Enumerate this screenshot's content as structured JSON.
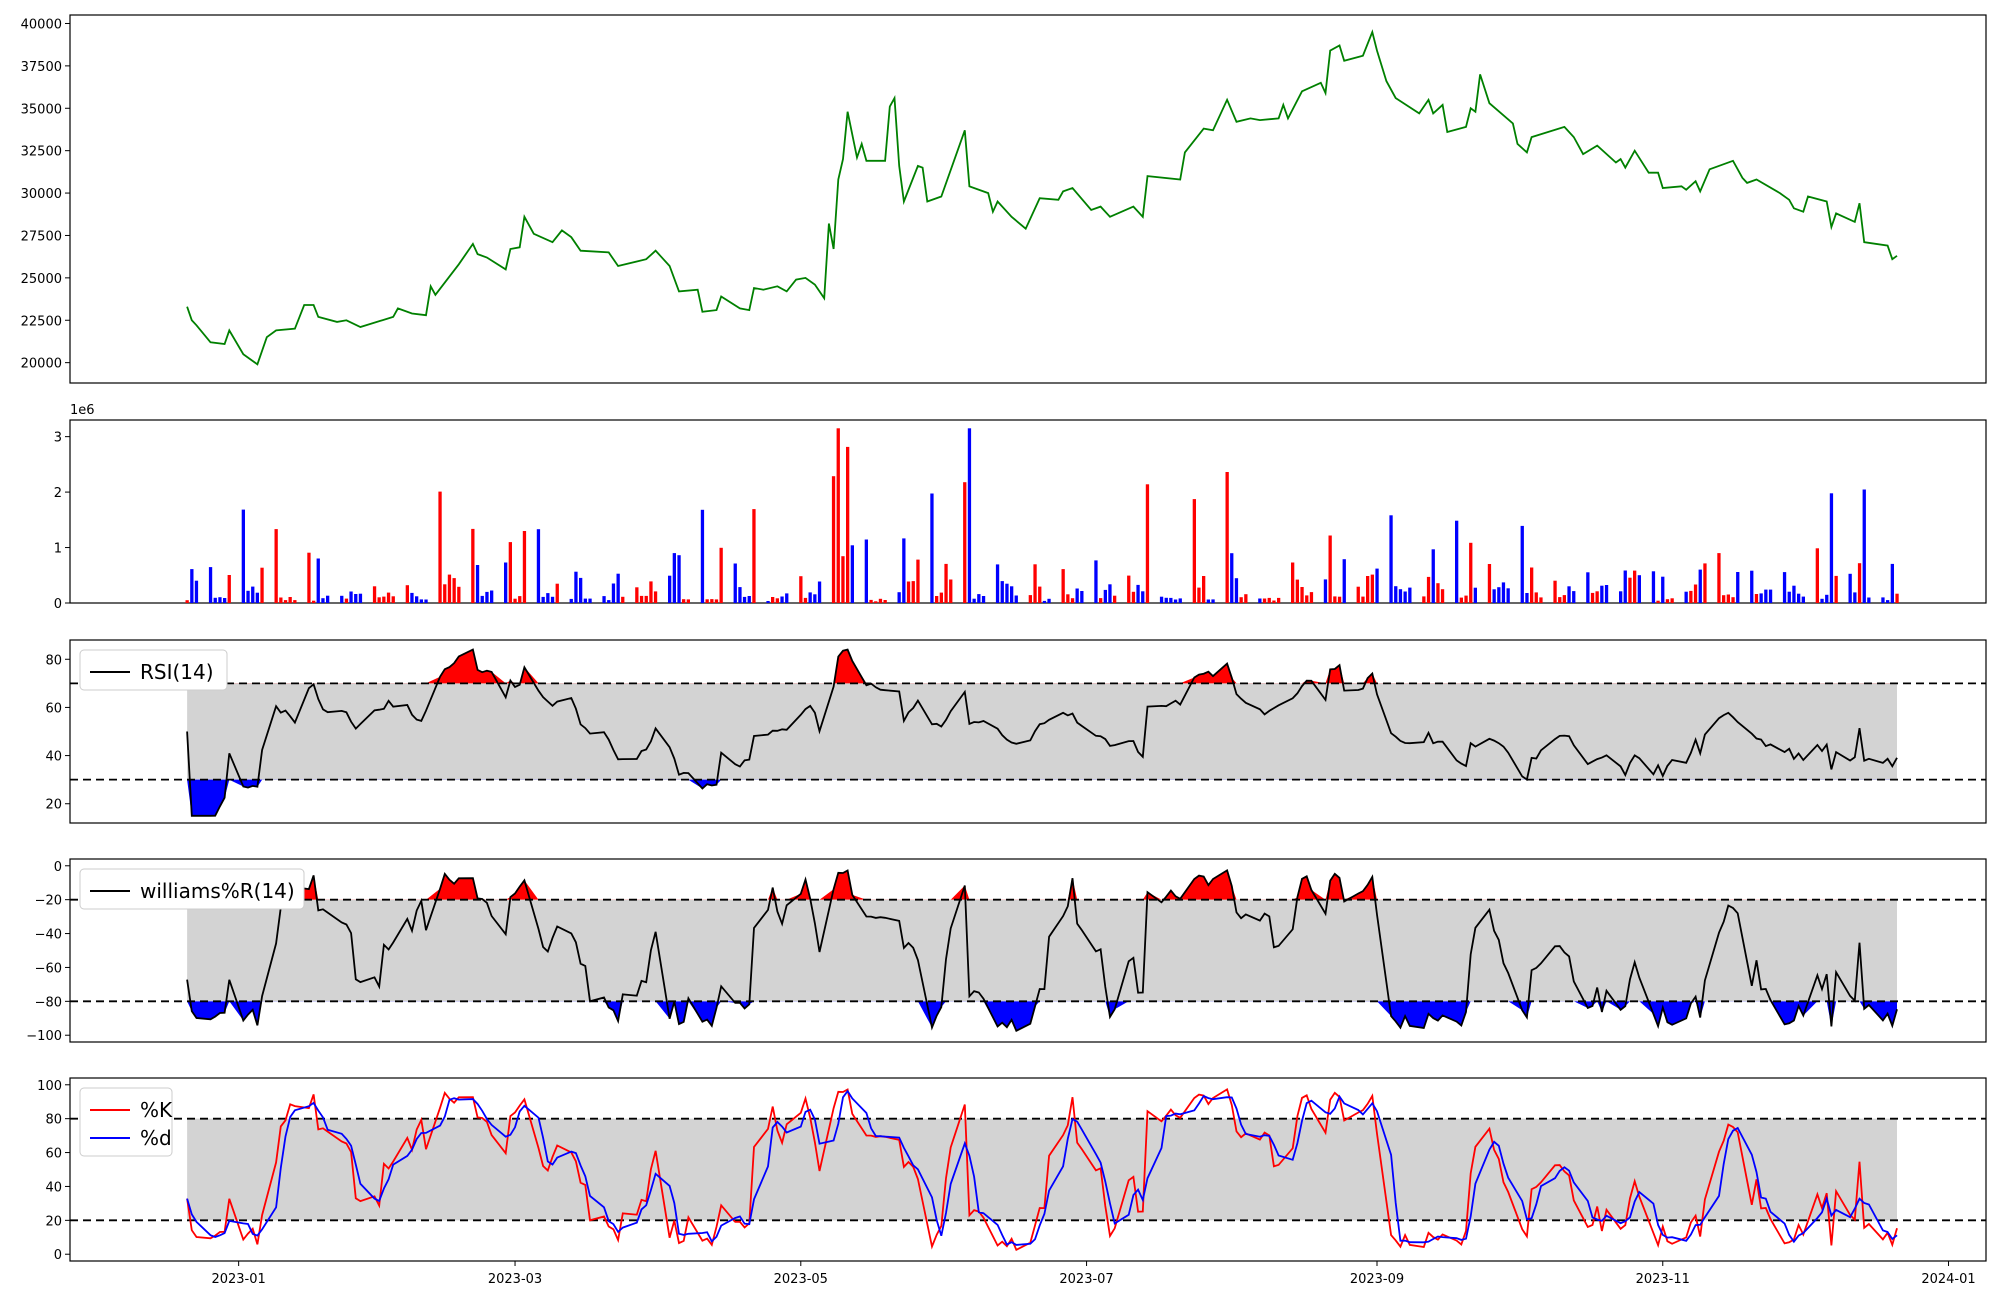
{
  "chart_data": [
    {
      "type": "line",
      "panel": "price",
      "title": "",
      "ylim": [
        18800,
        40500
      ],
      "yticks": [
        20000,
        22500,
        25000,
        27500,
        30000,
        32500,
        35000,
        37500,
        40000
      ],
      "ytick_labels": [
        "20000",
        "22500",
        "25000",
        "27500",
        "30000",
        "32500",
        "35000",
        "37500",
        "40000"
      ],
      "colors": {
        "line": "#008000"
      },
      "series": [
        {
          "points": [
            [
              "2022-12-21",
              23300
            ],
            [
              "2022-12-22",
              22500
            ],
            [
              "2022-12-23",
              22200
            ],
            [
              "2022-12-26",
              21200
            ],
            [
              "2022-12-29",
              21100
            ],
            [
              "2022-12-30",
              21900
            ],
            [
              "2023-01-02",
              20500
            ],
            [
              "2023-01-05",
              19900
            ],
            [
              "2023-01-07",
              21500
            ],
            [
              "2023-01-09",
              21900
            ],
            [
              "2023-01-13",
              22000
            ],
            [
              "2023-01-15",
              23400
            ],
            [
              "2023-01-17",
              23400
            ],
            [
              "2023-01-18",
              22700
            ],
            [
              "2023-01-22",
              22400
            ],
            [
              "2023-01-24",
              22500
            ],
            [
              "2023-01-27",
              22100
            ],
            [
              "2023-02-03",
              22700
            ],
            [
              "2023-02-04",
              23200
            ],
            [
              "2023-02-07",
              22900
            ],
            [
              "2023-02-10",
              22800
            ],
            [
              "2023-02-11",
              24500
            ],
            [
              "2023-02-12",
              24000
            ],
            [
              "2023-02-17",
              25800
            ],
            [
              "2023-02-20",
              27000
            ],
            [
              "2023-02-21",
              26400
            ],
            [
              "2023-02-23",
              26200
            ],
            [
              "2023-02-27",
              25500
            ],
            [
              "2023-02-28",
              26700
            ],
            [
              "2023-03-02",
              26800
            ],
            [
              "2023-03-03",
              28600
            ],
            [
              "2023-03-05",
              27600
            ],
            [
              "2023-03-09",
              27100
            ],
            [
              "2023-03-11",
              27800
            ],
            [
              "2023-03-13",
              27400
            ],
            [
              "2023-03-15",
              26600
            ],
            [
              "2023-03-21",
              26500
            ],
            [
              "2023-03-23",
              25700
            ],
            [
              "2023-03-29",
              26100
            ],
            [
              "2023-03-31",
              26600
            ],
            [
              "2023-04-01",
              26300
            ],
            [
              "2023-04-03",
              25700
            ],
            [
              "2023-04-05",
              24200
            ],
            [
              "2023-04-09",
              24300
            ],
            [
              "2023-04-10",
              23000
            ],
            [
              "2023-04-13",
              23100
            ],
            [
              "2023-04-14",
              23900
            ],
            [
              "2023-04-18",
              23200
            ],
            [
              "2023-04-20",
              23100
            ],
            [
              "2023-04-21",
              24400
            ],
            [
              "2023-04-23",
              24300
            ],
            [
              "2023-04-26",
              24500
            ],
            [
              "2023-04-28",
              24200
            ],
            [
              "2023-04-30",
              24900
            ],
            [
              "2023-05-02",
              25000
            ],
            [
              "2023-05-04",
              24600
            ],
            [
              "2023-05-06",
              23800
            ],
            [
              "2023-03-20",
              23800
            ]
          ]
        }
      ]
    },
    {
      "type": "bar",
      "panel": "volume",
      "exponent_label": "1e6",
      "ylim": [
        0,
        3300000
      ],
      "yticks": [
        0,
        1000000,
        2000000,
        3000000
      ],
      "ytick_labels": [
        "0",
        "1",
        "2",
        "3"
      ],
      "colors": {
        "up": "#ff0000",
        "down": "#0000ff"
      }
    },
    {
      "type": "line",
      "panel": "rsi",
      "legend": [
        "RSI(14)"
      ],
      "ylim": [
        12,
        88
      ],
      "yticks": [
        20,
        40,
        60,
        80
      ],
      "ytick_labels": [
        "20",
        "40",
        "60",
        "80"
      ],
      "thresholds": [
        70,
        30
      ],
      "colors": {
        "line": "#000000",
        "band": "#d3d3d3",
        "overbought": "#ff0000",
        "oversold": "#0000ff"
      }
    },
    {
      "type": "line",
      "panel": "williams",
      "legend": [
        "williams%R(14)"
      ],
      "ylim": [
        -104,
        4
      ],
      "yticks": [
        -100,
        -80,
        -60,
        -40,
        -20,
        0
      ],
      "ytick_labels": [
        "−100",
        "−80",
        "−60",
        "−40",
        "−20",
        "0"
      ],
      "thresholds": [
        -20,
        -80
      ],
      "colors": {
        "line": "#000000",
        "band": "#d3d3d3",
        "overbought": "#ff0000",
        "oversold": "#0000ff"
      }
    },
    {
      "type": "line",
      "panel": "stochastic",
      "legend": [
        "%K",
        "%d"
      ],
      "ylim": [
        -4,
        104
      ],
      "yticks": [
        0,
        20,
        40,
        60,
        80,
        100
      ],
      "ytick_labels": [
        "0",
        "20",
        "40",
        "60",
        "80",
        "100"
      ],
      "thresholds": [
        80,
        20
      ],
      "colors": {
        "k": "#ff0000",
        "d": "#0000ff",
        "band": "#d3d3d3"
      }
    }
  ],
  "x_axis": {
    "range": [
      "2022-11-26",
      "2024-01-09"
    ],
    "data_range": [
      "2022-12-21",
      "2023-12-21"
    ],
    "ticks": [
      "2023-01-01",
      "2023-03-01",
      "2023-05-01",
      "2023-07-01",
      "2023-09-01",
      "2023-11-01",
      "2024-01-01"
    ],
    "tick_labels": [
      "2023-01",
      "2023-03",
      "2023-05",
      "2023-07",
      "2023-09",
      "2023-11",
      "2024-01"
    ]
  },
  "price_tail": [
    [
      "2023-05-07",
      28200
    ],
    [
      "2023-05-08",
      26700
    ],
    [
      "2023-05-09",
      30800
    ],
    [
      "2023-05-10",
      32000
    ],
    [
      "2023-05-11",
      34800
    ],
    [
      "2023-05-13",
      32100
    ],
    [
      "2023-05-14",
      32900
    ],
    [
      "2023-05-15",
      31900
    ],
    [
      "2023-05-19",
      31900
    ],
    [
      "2023-05-20",
      35100
    ],
    [
      "2023-05-21",
      35600
    ],
    [
      "2023-05-22",
      31600
    ],
    [
      "2023-05-23",
      29500
    ],
    [
      "2023-05-26",
      31600
    ],
    [
      "2023-05-27",
      31500
    ],
    [
      "2023-05-28",
      29500
    ],
    [
      "2023-05-31",
      29800
    ],
    [
      "2023-06-05",
      33700
    ],
    [
      "2023-06-06",
      30400
    ],
    [
      "2023-06-10",
      30000
    ],
    [
      "2023-06-11",
      28900
    ],
    [
      "2023-06-12",
      29500
    ],
    [
      "2023-06-15",
      28600
    ],
    [
      "2023-06-18",
      27900
    ],
    [
      "2023-06-21",
      29700
    ],
    [
      "2023-06-25",
      29600
    ],
    [
      "2023-06-26",
      30100
    ],
    [
      "2023-06-28",
      30300
    ],
    [
      "2023-07-02",
      29000
    ],
    [
      "2023-07-04",
      29200
    ],
    [
      "2023-07-06",
      28600
    ],
    [
      "2023-07-11",
      29200
    ],
    [
      "2023-07-13",
      28600
    ],
    [
      "2023-07-14",
      31000
    ],
    [
      "2023-07-21",
      30800
    ],
    [
      "2023-07-22",
      32400
    ],
    [
      "2023-07-26",
      33800
    ],
    [
      "2023-07-28",
      33700
    ],
    [
      "2023-07-31",
      35500
    ],
    [
      "2023-08-02",
      34200
    ],
    [
      "2023-08-05",
      34400
    ],
    [
      "2023-08-07",
      34300
    ],
    [
      "2023-08-11",
      34400
    ],
    [
      "2023-08-12",
      35200
    ],
    [
      "2023-08-13",
      34400
    ],
    [
      "2023-08-16",
      36000
    ],
    [
      "2023-08-20",
      36500
    ],
    [
      "2023-08-21",
      35900
    ],
    [
      "2023-08-22",
      38400
    ],
    [
      "2023-08-24",
      38700
    ],
    [
      "2023-08-25",
      37800
    ],
    [
      "2023-08-29",
      38100
    ],
    [
      "2023-08-31",
      39500
    ],
    [
      "2023-09-01",
      38400
    ],
    [
      "2023-09-03",
      36600
    ],
    [
      "2023-09-05",
      35600
    ],
    [
      "2023-09-10",
      34700
    ],
    [
      "2023-09-12",
      35500
    ],
    [
      "2023-09-13",
      34700
    ],
    [
      "2023-09-15",
      35200
    ],
    [
      "2023-09-16",
      33600
    ],
    [
      "2023-09-20",
      33900
    ],
    [
      "2023-09-21",
      35000
    ],
    [
      "2023-09-22",
      34800
    ],
    [
      "2023-09-23",
      37000
    ],
    [
      "2023-09-25",
      35300
    ],
    [
      "2023-09-30",
      34100
    ],
    [
      "2023-10-01",
      32900
    ],
    [
      "2023-10-03",
      32400
    ],
    [
      "2023-10-04",
      33300
    ],
    [
      "2023-10-11",
      33900
    ],
    [
      "2023-10-13",
      33300
    ],
    [
      "2023-10-15",
      32300
    ],
    [
      "2023-10-18",
      32800
    ],
    [
      "2023-10-22",
      31800
    ],
    [
      "2023-10-23",
      32000
    ],
    [
      "2023-10-24",
      31500
    ],
    [
      "2023-10-26",
      32500
    ],
    [
      "2023-10-29",
      31200
    ],
    [
      "2023-10-31",
      31200
    ],
    [
      "2023-11-01",
      30300
    ],
    [
      "2023-11-05",
      30400
    ],
    [
      "2023-11-06",
      30200
    ],
    [
      "2023-11-08",
      30700
    ],
    [
      "2023-11-09",
      30100
    ],
    [
      "2023-11-11",
      31400
    ],
    [
      "2023-11-16",
      31900
    ],
    [
      "2023-11-18",
      30900
    ],
    [
      "2023-11-19",
      30600
    ],
    [
      "2023-11-21",
      30800
    ],
    [
      "2023-11-26",
      30000
    ],
    [
      "2023-11-28",
      29600
    ],
    [
      "2023-11-29",
      29100
    ],
    [
      "2023-12-01",
      28900
    ],
    [
      "2023-12-02",
      29800
    ],
    [
      "2023-12-06",
      29500
    ],
    [
      "2023-12-07",
      28000
    ],
    [
      "2023-12-08",
      28800
    ],
    [
      "2023-12-12",
      28300
    ],
    [
      "2023-12-13",
      29400
    ],
    [
      "2023-12-14",
      27100
    ],
    [
      "2023-12-19",
      26900
    ],
    [
      "2023-12-20",
      26100
    ],
    [
      "2023-12-21",
      26300
    ]
  ]
}
